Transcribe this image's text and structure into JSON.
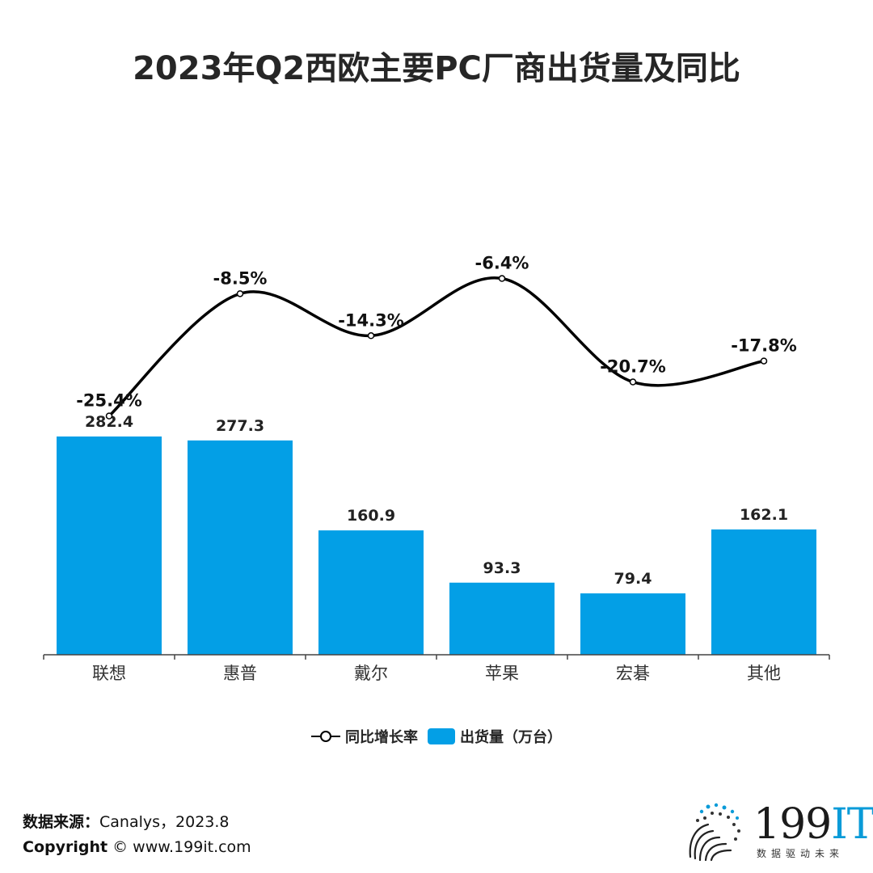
{
  "title": "2023年Q2西欧主要PC厂商出货量及同比",
  "chart_data": {
    "type": "bar+line",
    "categories": [
      "联想",
      "惠普",
      "戴尔",
      "苹果",
      "宏碁",
      "其他"
    ],
    "series": [
      {
        "name": "出货量（万台）",
        "type": "bar",
        "axis": "left",
        "values": [
          282.4,
          277.3,
          160.9,
          93.3,
          79.4,
          162.1
        ],
        "labels": [
          "282.4",
          "277.3",
          "160.9",
          "93.3",
          "79.4",
          "162.1"
        ]
      },
      {
        "name": "同比增长率",
        "type": "line",
        "axis": "right",
        "smooth": true,
        "values": [
          -25.4,
          -8.5,
          -14.3,
          -6.4,
          -20.7,
          -17.8
        ],
        "labels": [
          "-25.4%",
          "-8.5%",
          "-14.3%",
          "-6.4%",
          "-20.7%",
          "-17.8%"
        ]
      }
    ],
    "left_axis": {
      "range": [
        0,
        300
      ],
      "visible": false
    },
    "right_axis": {
      "range": [
        -26,
        -5
      ],
      "visible": false
    },
    "grid": false,
    "legend_position": "bottom-center",
    "colors": {
      "bar": "#039fe6",
      "line": "#000000",
      "axis": "#444444"
    }
  },
  "legend": {
    "line_label": "同比增长率",
    "bar_label": "出货量（万台）"
  },
  "footer": {
    "source_label": "数据来源：",
    "source_value": "Canalys，2023.8",
    "copyright_label": "Copyright",
    "copyright_value": "© www.199it.com"
  },
  "logo": {
    "brand_num": "199",
    "brand_it": "IT",
    "tagline": "数据驱动未来",
    "icon": "dots-globe-icon"
  }
}
